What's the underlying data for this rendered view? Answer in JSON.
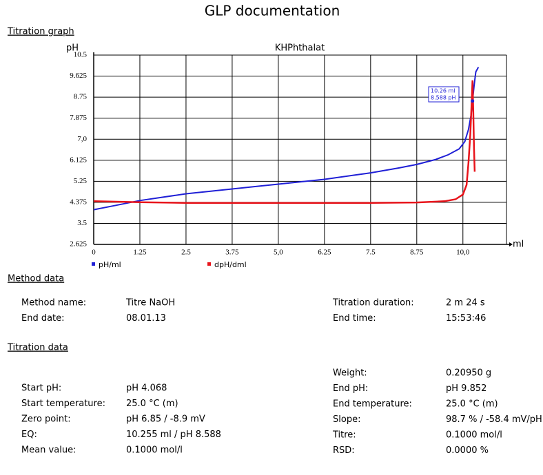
{
  "header": {
    "title": "GLP documentation"
  },
  "graph_section": {
    "title": "Titration graph"
  },
  "chart_data": {
    "type": "line",
    "title": "KHPhthalat",
    "y_label": "pH",
    "x_label": "ml",
    "xlim": [
      0,
      11.18
    ],
    "ylim": [
      2.625,
      10.5
    ],
    "xticks": [
      0,
      1.25,
      2.5,
      3.75,
      {
        "value": 5,
        "label": "5,0"
      },
      6.25,
      7.5,
      8.75,
      {
        "value": 10,
        "label": "10,0"
      }
    ],
    "yticks": [
      2.625,
      3.5,
      4.375,
      5.25,
      6.125,
      {
        "value": 7,
        "label": "7,0"
      },
      7.875,
      8.75,
      9.625,
      10.5
    ],
    "grid": true,
    "series": [
      {
        "name": "pH/ml",
        "color": "#1f1fd6",
        "x": [
          0,
          0.6,
          1.25,
          2.5,
          3.75,
          5,
          6.25,
          7.5,
          8.25,
          8.75,
          9.25,
          9.6,
          9.9,
          10.05,
          10.15,
          10.22,
          10.26,
          10.3,
          10.35,
          10.42
        ],
        "values": [
          4.068,
          4.25,
          4.45,
          4.73,
          4.93,
          5.13,
          5.33,
          5.6,
          5.8,
          5.95,
          6.15,
          6.35,
          6.6,
          6.9,
          7.4,
          8.0,
          8.588,
          9.2,
          9.8,
          10.0
        ]
      },
      {
        "name": "dpH/dml",
        "color": "#e8141b",
        "x": [
          0,
          1.25,
          2.5,
          5,
          7.5,
          8.75,
          9.5,
          9.8,
          10.0,
          10.1,
          10.15,
          10.2,
          10.24,
          10.26,
          10.28,
          10.3,
          10.32
        ],
        "values": [
          4.42,
          4.38,
          4.35,
          4.35,
          4.35,
          4.37,
          4.42,
          4.5,
          4.7,
          5.1,
          6.0,
          7.2,
          8.6,
          9.45,
          8.2,
          6.6,
          5.65
        ]
      }
    ],
    "annotation": [
      "10.26 ml",
      "8.588 pH"
    ],
    "annotation_point": {
      "x": 10.26,
      "y": 8.588
    }
  },
  "method_section": {
    "title": "Method data"
  },
  "method_data": {
    "left": [
      [
        "Method name:",
        "Titre NaOH"
      ],
      [
        "End date:",
        "08.01.13"
      ]
    ],
    "right": [
      [
        "Titration duration:",
        "2 m 24 s"
      ],
      [
        "End time:",
        "15:53:46"
      ]
    ]
  },
  "titration_section": {
    "title": "Titration data"
  },
  "titration_data": {
    "left": [
      [
        "Start pH:",
        "pH 4.068"
      ],
      [
        "Start temperature:",
        "25.0 °C (m)"
      ],
      [
        "Zero point:",
        "pH 6.85 / -8.9 mV"
      ],
      [
        "EQ:",
        "10.255 ml / pH 8.588"
      ],
      [
        "Mean value:",
        "0.1000 mol/l"
      ]
    ],
    "right": [
      [
        "Weight:",
        "0.20950 g"
      ],
      [
        "End pH:",
        "pH 9.852"
      ],
      [
        "End temperature:",
        "25.0 °C (m)"
      ],
      [
        "Slope:",
        "98.7 % / -58.4 mV/pH"
      ],
      [
        "Titre:",
        "0.1000 mol/l"
      ],
      [
        "RSD:",
        "0.0000 %"
      ]
    ]
  }
}
